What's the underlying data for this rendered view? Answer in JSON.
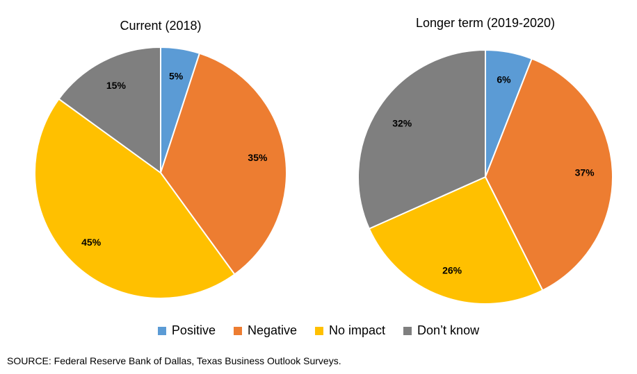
{
  "chart_data": [
    {
      "type": "pie",
      "title": "Current (2018)",
      "categories": [
        "Positive",
        "Negative",
        "No impact",
        "Don’t know"
      ],
      "values": [
        5,
        35,
        45,
        15
      ],
      "labels": [
        "5%",
        "35%",
        "45%",
        "15%"
      ]
    },
    {
      "type": "pie",
      "title": "Longer term (2019-2020)",
      "categories": [
        "Positive",
        "Negative",
        "No impact",
        "Don’t know"
      ],
      "values": [
        6,
        37,
        26,
        32
      ],
      "labels": [
        "6%",
        "37%",
        "26%",
        "32%"
      ]
    }
  ],
  "legend": {
    "placement": "bottom",
    "items": [
      {
        "label": "Positive",
        "color": "#5B9BD5"
      },
      {
        "label": "Negative",
        "color": "#ED7D31"
      },
      {
        "label": "No impact",
        "color": "#FFC000"
      },
      {
        "label": "Don’t know",
        "color": "#7F7F7F"
      }
    ]
  },
  "source": "SOURCE: Federal Reserve Bank of Dallas, Texas Business Outlook Surveys."
}
